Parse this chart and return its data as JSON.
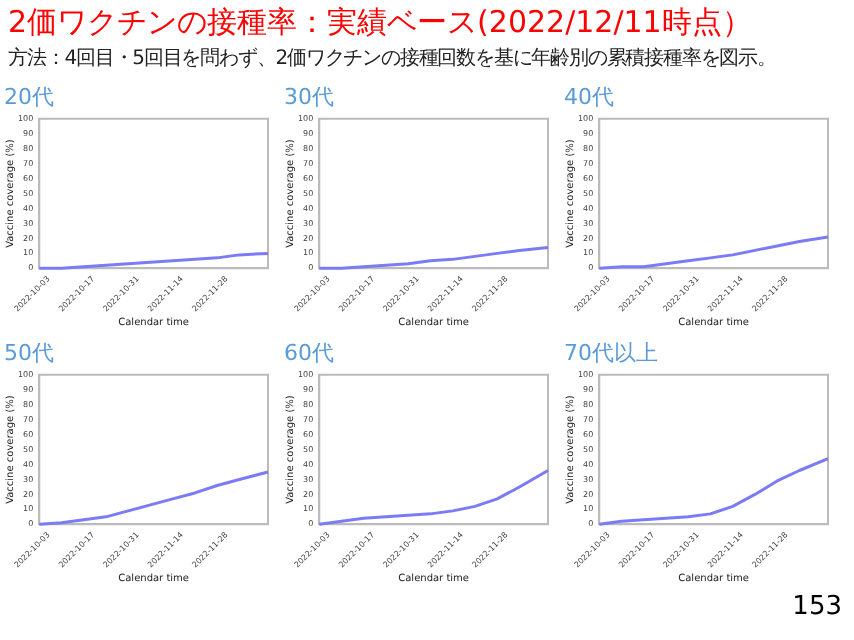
{
  "chart_data": [
    {
      "type": "other",
      "title": "2価ワクチンの接種率：実績ベース(2022/12/11時点）",
      "subtitle": "方法：4回目・5回目を問わず、2価ワクチンの接種回数を基に年齢別の累積接種率を図示。",
      "annotations": [
        "153"
      ]
    },
    {
      "type": "line",
      "title": "20代",
      "xlabel": "Calendar time",
      "ylabel": "Vaccine coverage (%)",
      "xlim": [
        "2022-09-30",
        "2022-12-11"
      ],
      "xticks": [
        "2022-10-03",
        "2022-10-17",
        "2022-10-31",
        "2022-11-14",
        "2022-11-28"
      ],
      "ylim": [
        0,
        100
      ],
      "yticks": [
        0,
        10,
        20,
        30,
        40,
        50,
        60,
        70,
        80,
        90,
        100
      ],
      "x": [
        "2022-09-30",
        "2022-10-07",
        "2022-10-14",
        "2022-10-21",
        "2022-10-28",
        "2022-11-04",
        "2022-11-11",
        "2022-11-18",
        "2022-11-25",
        "2022-12-02",
        "2022-12-11"
      ],
      "series": [
        {
          "color": "#7b7bf5",
          "values": [
            0,
            0,
            1,
            2,
            3,
            4,
            5,
            6,
            7,
            9,
            10
          ]
        }
      ]
    },
    {
      "type": "line",
      "title": "30代",
      "xlabel": "Calendar time",
      "ylabel": "Vaccine coverage (%)",
      "xlim": [
        "2022-09-30",
        "2022-12-11"
      ],
      "xticks": [
        "2022-10-03",
        "2022-10-17",
        "2022-10-31",
        "2022-11-14",
        "2022-11-28"
      ],
      "ylim": [
        0,
        100
      ],
      "yticks": [
        0,
        10,
        20,
        30,
        40,
        50,
        60,
        70,
        80,
        90,
        100
      ],
      "x": [
        "2022-09-30",
        "2022-10-07",
        "2022-10-14",
        "2022-10-21",
        "2022-10-28",
        "2022-11-04",
        "2022-11-11",
        "2022-11-18",
        "2022-11-25",
        "2022-12-02",
        "2022-12-11"
      ],
      "series": [
        {
          "color": "#7b7bf5",
          "values": [
            0,
            0,
            1,
            2,
            3,
            5,
            6,
            8,
            10,
            12,
            14
          ]
        }
      ]
    },
    {
      "type": "line",
      "title": "40代",
      "xlabel": "Calendar time",
      "ylabel": "Vaccine coverage (%)",
      "xlim": [
        "2022-09-30",
        "2022-12-11"
      ],
      "xticks": [
        "2022-10-03",
        "2022-10-17",
        "2022-10-31",
        "2022-11-14",
        "2022-11-28"
      ],
      "ylim": [
        0,
        100
      ],
      "yticks": [
        0,
        10,
        20,
        30,
        40,
        50,
        60,
        70,
        80,
        90,
        100
      ],
      "x": [
        "2022-09-30",
        "2022-10-07",
        "2022-10-14",
        "2022-10-21",
        "2022-10-28",
        "2022-11-04",
        "2022-11-11",
        "2022-11-18",
        "2022-11-25",
        "2022-12-02",
        "2022-12-11"
      ],
      "series": [
        {
          "color": "#7b7bf5",
          "values": [
            0,
            1,
            1,
            3,
            5,
            7,
            9,
            12,
            15,
            18,
            21
          ]
        }
      ]
    },
    {
      "type": "line",
      "title": "50代",
      "xlabel": "Calendar time",
      "ylabel": "Vaccine coverage (%)",
      "xlim": [
        "2022-09-30",
        "2022-12-11"
      ],
      "xticks": [
        "2022-10-03",
        "2022-10-17",
        "2022-10-31",
        "2022-11-14",
        "2022-11-28"
      ],
      "ylim": [
        0,
        100
      ],
      "yticks": [
        0,
        10,
        20,
        30,
        40,
        50,
        60,
        70,
        80,
        90,
        100
      ],
      "x": [
        "2022-09-30",
        "2022-10-07",
        "2022-10-14",
        "2022-10-21",
        "2022-10-28",
        "2022-11-04",
        "2022-11-11",
        "2022-11-18",
        "2022-11-25",
        "2022-12-02",
        "2022-12-11"
      ],
      "series": [
        {
          "color": "#7b7bf5",
          "values": [
            0,
            1,
            3,
            5,
            9,
            13,
            17,
            21,
            26,
            30,
            35
          ]
        }
      ]
    },
    {
      "type": "line",
      "title": "60代",
      "xlabel": "Calendar time",
      "ylabel": "Vaccine coverage (%)",
      "xlim": [
        "2022-09-30",
        "2022-12-11"
      ],
      "xticks": [
        "2022-10-03",
        "2022-10-17",
        "2022-10-31",
        "2022-11-14",
        "2022-11-28"
      ],
      "ylim": [
        0,
        100
      ],
      "yticks": [
        0,
        10,
        20,
        30,
        40,
        50,
        60,
        70,
        80,
        90,
        100
      ],
      "x": [
        "2022-09-30",
        "2022-10-07",
        "2022-10-14",
        "2022-10-21",
        "2022-10-28",
        "2022-11-04",
        "2022-11-11",
        "2022-11-18",
        "2022-11-25",
        "2022-12-02",
        "2022-12-11"
      ],
      "series": [
        {
          "color": "#7b7bf5",
          "values": [
            0,
            2,
            4,
            5,
            6,
            7,
            9,
            12,
            17,
            25,
            36
          ]
        }
      ]
    },
    {
      "type": "line",
      "title": "70代以上",
      "xlabel": "Calendar time",
      "ylabel": "Vaccine coverage (%)",
      "xlim": [
        "2022-09-30",
        "2022-12-11"
      ],
      "xticks": [
        "2022-10-03",
        "2022-10-17",
        "2022-10-31",
        "2022-11-14",
        "2022-11-28"
      ],
      "ylim": [
        0,
        100
      ],
      "yticks": [
        0,
        10,
        20,
        30,
        40,
        50,
        60,
        70,
        80,
        90,
        100
      ],
      "x": [
        "2022-09-30",
        "2022-10-07",
        "2022-10-14",
        "2022-10-21",
        "2022-10-28",
        "2022-11-04",
        "2022-11-11",
        "2022-11-18",
        "2022-11-25",
        "2022-12-02",
        "2022-12-11"
      ],
      "series": [
        {
          "color": "#7b7bf5",
          "values": [
            0,
            2,
            3,
            4,
            5,
            7,
            12,
            20,
            29,
            36,
            44
          ]
        }
      ]
    }
  ]
}
